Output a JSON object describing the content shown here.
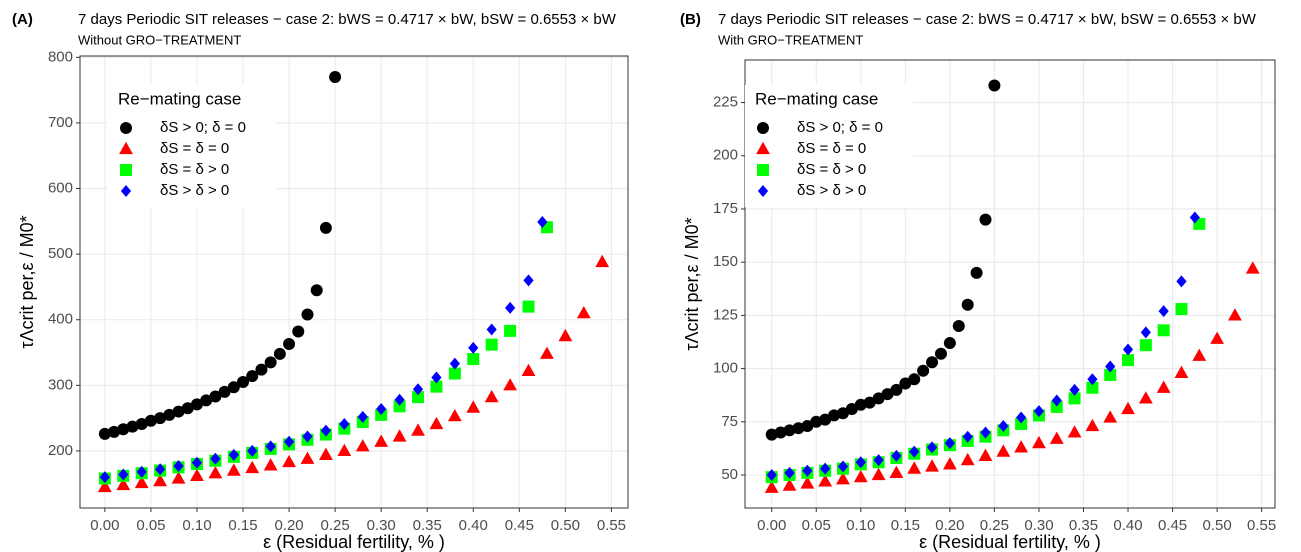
{
  "chart_data": [
    {
      "type": "scatter",
      "panel": "(A)",
      "title": "7 days Periodic SIT releases − case 2: bWS = 0.4717 × bW, bSW = 0.6553 × bW",
      "subtitle": "Without GRO−TREATMENT",
      "xlabel": "ε (Residual fertility,  % )",
      "ylabel": "τΛcrit per,ε / M0*",
      "legend_title": "Re−mating case",
      "legend": "top-left",
      "grid": true,
      "xlim": [
        -0.027,
        0.568
      ],
      "xticks": [
        {
          "value": 0,
          "label": "0.00"
        },
        {
          "value": 0.05,
          "label": "0.05"
        },
        {
          "value": 0.1,
          "label": "0.10"
        },
        {
          "value": 0.15,
          "label": "0.15"
        },
        {
          "value": 0.2,
          "label": "0.20"
        },
        {
          "value": 0.25,
          "label": "0.25"
        },
        {
          "value": 0.3,
          "label": "0.30"
        },
        {
          "value": 0.35,
          "label": "0.35"
        },
        {
          "value": 0.4,
          "label": "0.40"
        },
        {
          "value": 0.45,
          "label": "0.45"
        },
        {
          "value": 0.5,
          "label": "0.50"
        },
        {
          "value": 0.55,
          "label": "0.55"
        }
      ],
      "ylim": [
        113,
        802
      ],
      "yticks": [
        200,
        300,
        400,
        500,
        600,
        700,
        800
      ],
      "series": [
        {
          "name": "δS > 0; δ = 0",
          "color": "#000000",
          "marker": "circle",
          "x": [
            0,
            0.01,
            0.02,
            0.03,
            0.04,
            0.05,
            0.06,
            0.07,
            0.08,
            0.09,
            0.1,
            0.11,
            0.12,
            0.13,
            0.14,
            0.15,
            0.16,
            0.17,
            0.18,
            0.19,
            0.2,
            0.21,
            0.22,
            0.23,
            0.24,
            0.25
          ],
          "values": [
            226,
            229,
            233,
            237,
            241,
            246,
            250,
            255,
            260,
            265,
            271,
            277,
            283,
            290,
            297,
            305,
            314,
            324,
            335,
            348,
            363,
            382,
            408,
            445,
            540,
            770
          ]
        },
        {
          "name": "δS = δ = 0",
          "color": "#ff0000",
          "marker": "triangle",
          "x": [
            0,
            0.02,
            0.04,
            0.06,
            0.08,
            0.1,
            0.12,
            0.14,
            0.16,
            0.18,
            0.2,
            0.22,
            0.24,
            0.26,
            0.28,
            0.3,
            0.32,
            0.34,
            0.36,
            0.38,
            0.4,
            0.42,
            0.44,
            0.46,
            0.48,
            0.5,
            0.52,
            0.54
          ],
          "values": [
            145,
            148,
            151,
            154,
            158,
            162,
            166,
            170,
            174,
            178,
            183,
            188,
            194,
            200,
            207,
            214,
            222,
            231,
            241,
            253,
            266,
            282,
            300,
            322,
            348,
            375,
            410,
            488
          ]
        },
        {
          "name": "δS = δ > 0",
          "color": "#00ff00",
          "marker": "square",
          "x": [
            0,
            0.02,
            0.04,
            0.06,
            0.08,
            0.1,
            0.12,
            0.14,
            0.16,
            0.18,
            0.2,
            0.22,
            0.24,
            0.26,
            0.28,
            0.3,
            0.32,
            0.34,
            0.36,
            0.38,
            0.4,
            0.42,
            0.44,
            0.46,
            0.48
          ],
          "values": [
            158,
            162,
            166,
            170,
            175,
            180,
            185,
            191,
            197,
            203,
            210,
            217,
            225,
            234,
            244,
            255,
            268,
            282,
            298,
            318,
            340,
            362,
            383,
            420,
            541
          ]
        },
        {
          "name": "δS > δ > 0",
          "color": "#0000ff",
          "marker": "diamond",
          "x": [
            0,
            0.02,
            0.04,
            0.06,
            0.08,
            0.1,
            0.12,
            0.14,
            0.16,
            0.18,
            0.2,
            0.22,
            0.24,
            0.26,
            0.28,
            0.3,
            0.32,
            0.34,
            0.36,
            0.38,
            0.4,
            0.42,
            0.44,
            0.46,
            0.475
          ],
          "values": [
            160,
            164,
            168,
            172,
            177,
            182,
            188,
            194,
            200,
            207,
            214,
            222,
            231,
            241,
            252,
            264,
            278,
            294,
            312,
            333,
            357,
            385,
            418,
            460,
            549
          ]
        }
      ]
    },
    {
      "type": "scatter",
      "panel": "(B)",
      "title": "7 days Periodic SIT releases − case 2: bWS = 0.4717 × bW, bSW = 0.6553 × bW",
      "subtitle": "With GRO−TREATMENT",
      "xlabel": "ε (Residual fertility,  % )",
      "ylabel": "τΛcrit per,ε / M0*",
      "legend_title": "Re−mating case",
      "legend": "top-left",
      "grid": true,
      "xlim": [
        -0.03,
        0.565
      ],
      "xticks": [
        {
          "value": 0,
          "label": "0.00"
        },
        {
          "value": 0.05,
          "label": "0.05"
        },
        {
          "value": 0.1,
          "label": "0.10"
        },
        {
          "value": 0.15,
          "label": "0.15"
        },
        {
          "value": 0.2,
          "label": "0.20"
        },
        {
          "value": 0.25,
          "label": "0.25"
        },
        {
          "value": 0.3,
          "label": "0.30"
        },
        {
          "value": 0.35,
          "label": "0.35"
        },
        {
          "value": 0.4,
          "label": "0.40"
        },
        {
          "value": 0.45,
          "label": "0.45"
        },
        {
          "value": 0.5,
          "label": "0.50"
        },
        {
          "value": 0.55,
          "label": "0.55"
        }
      ],
      "ylim": [
        34.5,
        245
      ],
      "yticks": [
        50,
        75,
        100,
        125,
        150,
        175,
        200,
        225
      ],
      "series": [
        {
          "name": "δS > 0; δ = 0",
          "color": "#000000",
          "marker": "circle",
          "x": [
            0,
            0.01,
            0.02,
            0.03,
            0.04,
            0.05,
            0.06,
            0.07,
            0.08,
            0.09,
            0.1,
            0.11,
            0.12,
            0.13,
            0.14,
            0.15,
            0.16,
            0.17,
            0.18,
            0.19,
            0.2,
            0.21,
            0.22,
            0.23,
            0.24,
            0.25
          ],
          "values": [
            69,
            70,
            71,
            72,
            73,
            75,
            76,
            78,
            79,
            81,
            83,
            84,
            86,
            88,
            90,
            93,
            95,
            99,
            103,
            107,
            112,
            120,
            130,
            145,
            170,
            233
          ]
        },
        {
          "name": "δS = δ = 0",
          "color": "#ff0000",
          "marker": "triangle",
          "x": [
            0,
            0.02,
            0.04,
            0.06,
            0.08,
            0.1,
            0.12,
            0.14,
            0.16,
            0.18,
            0.2,
            0.22,
            0.24,
            0.26,
            0.28,
            0.3,
            0.32,
            0.34,
            0.36,
            0.38,
            0.4,
            0.42,
            0.44,
            0.46,
            0.48,
            0.5,
            0.52,
            0.54
          ],
          "values": [
            44,
            45,
            46,
            47,
            48,
            49,
            50,
            51,
            53,
            54,
            55,
            57,
            59,
            61,
            63,
            65,
            67,
            70,
            73,
            77,
            81,
            86,
            91,
            98,
            106,
            114,
            125,
            147
          ]
        },
        {
          "name": "δS = δ > 0",
          "color": "#00ff00",
          "marker": "square",
          "x": [
            0,
            0.02,
            0.04,
            0.06,
            0.08,
            0.1,
            0.12,
            0.14,
            0.16,
            0.18,
            0.2,
            0.22,
            0.24,
            0.26,
            0.28,
            0.3,
            0.32,
            0.34,
            0.36,
            0.38,
            0.4,
            0.42,
            0.44,
            0.46,
            0.48
          ],
          "values": [
            49,
            50,
            51,
            52,
            53,
            55,
            56,
            58,
            60,
            62,
            64,
            66,
            68,
            71,
            74,
            78,
            82,
            86,
            91,
            97,
            104,
            111,
            118,
            128,
            168
          ]
        },
        {
          "name": "δS > δ > 0",
          "color": "#0000ff",
          "marker": "diamond",
          "x": [
            0,
            0.02,
            0.04,
            0.06,
            0.08,
            0.1,
            0.12,
            0.14,
            0.16,
            0.18,
            0.2,
            0.22,
            0.24,
            0.26,
            0.28,
            0.3,
            0.32,
            0.34,
            0.36,
            0.38,
            0.4,
            0.42,
            0.44,
            0.46,
            0.475
          ],
          "values": [
            50,
            51,
            52,
            53,
            54,
            56,
            57,
            59,
            61,
            63,
            65,
            68,
            70,
            73,
            77,
            80,
            85,
            90,
            95,
            101,
            109,
            117,
            127,
            141,
            171
          ]
        }
      ]
    }
  ]
}
